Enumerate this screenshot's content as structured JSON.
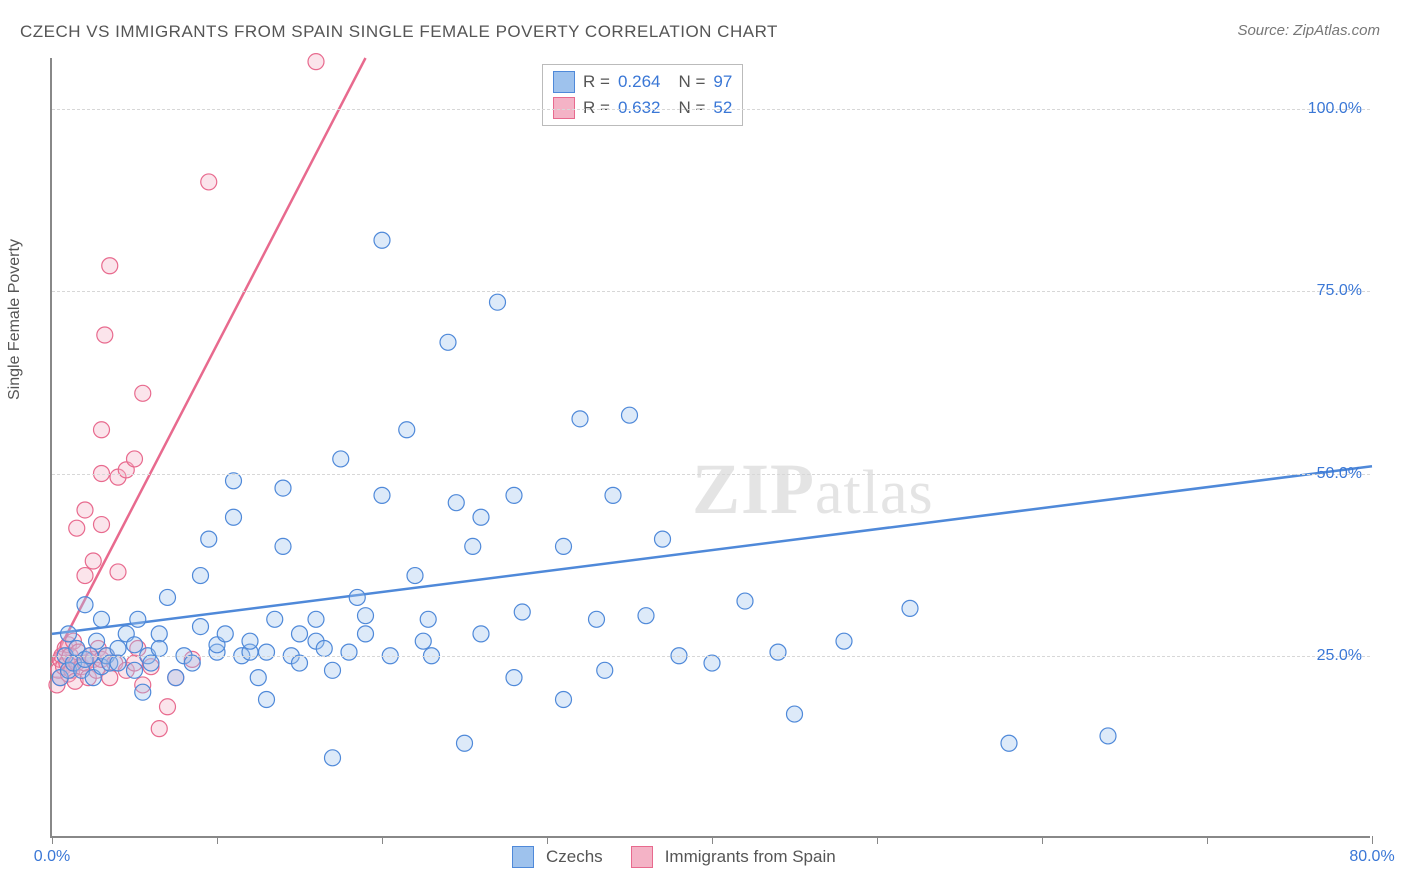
{
  "title": "CZECH VS IMMIGRANTS FROM SPAIN SINGLE FEMALE POVERTY CORRELATION CHART",
  "source": "Source: ZipAtlas.com",
  "ylabel": "Single Female Poverty",
  "watermark_part1": "ZIP",
  "watermark_part2": "atlas",
  "chart": {
    "type": "scatter",
    "background_color": "#ffffff",
    "grid_color": "#d7d7d7",
    "xlim": [
      0,
      80
    ],
    "ylim": [
      0,
      107
    ],
    "x_ticks": [
      0,
      10,
      20,
      30,
      40,
      50,
      60,
      70,
      80
    ],
    "x_tick_labels": {
      "0": "0.0%",
      "80": "80.0%"
    },
    "x_tick_label_color": "#3a77d6",
    "y_gridlines": [
      25,
      50,
      75,
      100
    ],
    "y_tick_labels": {
      "25": "25.0%",
      "50": "50.0%",
      "75": "75.0%",
      "100": "100.0%"
    },
    "y_tick_label_color": "#3a77d6",
    "marker_radius": 8,
    "marker_fill_opacity": 0.35,
    "marker_stroke_width": 1.2,
    "line_width": 2.5,
    "label_fontsize": 16,
    "title_fontsize": 17,
    "title_color": "#555555"
  },
  "series": {
    "czechs": {
      "label": "Czechs",
      "color_stroke": "#4f89d9",
      "color_fill": "#9ec2ed",
      "R": "0.264",
      "N": "97",
      "trend": {
        "x1": 0,
        "y1": 28,
        "x2": 80,
        "y2": 51
      },
      "points": [
        [
          0.5,
          22
        ],
        [
          0.8,
          25
        ],
        [
          1,
          23
        ],
        [
          1,
          28
        ],
        [
          1.3,
          24
        ],
        [
          1.5,
          26
        ],
        [
          1.8,
          23
        ],
        [
          2,
          24.5
        ],
        [
          2,
          32
        ],
        [
          2.3,
          25
        ],
        [
          2.5,
          22
        ],
        [
          2.7,
          27
        ],
        [
          3,
          23.5
        ],
        [
          3,
          30
        ],
        [
          3.3,
          25
        ],
        [
          3.5,
          24
        ],
        [
          4,
          26
        ],
        [
          4,
          24
        ],
        [
          4.5,
          28
        ],
        [
          5,
          23
        ],
        [
          5,
          26.5
        ],
        [
          5.2,
          30
        ],
        [
          5.5,
          20
        ],
        [
          5.8,
          25
        ],
        [
          6,
          24
        ],
        [
          6.5,
          28
        ],
        [
          6.5,
          26
        ],
        [
          7,
          33
        ],
        [
          7.5,
          22
        ],
        [
          8,
          25
        ],
        [
          8.5,
          24
        ],
        [
          9,
          29
        ],
        [
          9,
          36
        ],
        [
          9.5,
          41
        ],
        [
          10,
          25.5
        ],
        [
          10,
          26.5
        ],
        [
          10.5,
          28
        ],
        [
          11,
          44
        ],
        [
          11,
          49
        ],
        [
          11.5,
          25
        ],
        [
          12,
          25.5
        ],
        [
          12,
          27
        ],
        [
          12.5,
          22
        ],
        [
          13,
          19
        ],
        [
          13,
          25.5
        ],
        [
          13.5,
          30
        ],
        [
          14,
          40
        ],
        [
          14,
          48
        ],
        [
          14.5,
          25
        ],
        [
          15,
          24
        ],
        [
          15,
          28
        ],
        [
          16,
          27
        ],
        [
          16,
          30
        ],
        [
          16.5,
          26
        ],
        [
          17,
          11
        ],
        [
          17,
          23
        ],
        [
          17.5,
          52
        ],
        [
          18,
          25.5
        ],
        [
          18.5,
          33
        ],
        [
          19,
          28
        ],
        [
          19,
          30.5
        ],
        [
          20,
          82
        ],
        [
          20,
          47
        ],
        [
          20.5,
          25
        ],
        [
          21.5,
          56
        ],
        [
          22,
          36
        ],
        [
          22.5,
          27
        ],
        [
          22.8,
          30
        ],
        [
          23,
          25
        ],
        [
          24,
          68
        ],
        [
          24.5,
          46
        ],
        [
          25,
          13
        ],
        [
          25.5,
          40
        ],
        [
          26,
          44
        ],
        [
          26,
          28
        ],
        [
          27,
          73.5
        ],
        [
          28,
          22
        ],
        [
          28,
          47
        ],
        [
          28.5,
          31
        ],
        [
          31,
          19
        ],
        [
          31,
          40
        ],
        [
          32,
          57.5
        ],
        [
          33,
          30
        ],
        [
          33.5,
          23
        ],
        [
          34,
          47
        ],
        [
          35,
          58
        ],
        [
          36,
          30.5
        ],
        [
          37,
          41
        ],
        [
          38,
          25
        ],
        [
          40,
          24
        ],
        [
          42,
          32.5
        ],
        [
          44,
          25.5
        ],
        [
          45,
          17
        ],
        [
          48,
          27
        ],
        [
          52,
          31.5
        ],
        [
          58,
          13
        ],
        [
          64,
          14
        ]
      ]
    },
    "spain": {
      "label": "Immigrants from Spain",
      "color_stroke": "#e86a8e",
      "color_fill": "#f4b3c6",
      "R": "0.632",
      "N": "52",
      "trend": {
        "x1": 0,
        "y1": 24,
        "x2": 19,
        "y2": 107
      },
      "points": [
        [
          0.3,
          21
        ],
        [
          0.4,
          23
        ],
        [
          0.5,
          24.5
        ],
        [
          0.5,
          22
        ],
        [
          0.6,
          25
        ],
        [
          0.7,
          23.5
        ],
        [
          0.8,
          26
        ],
        [
          0.9,
          24
        ],
        [
          1,
          22.5
        ],
        [
          1,
          26.5
        ],
        [
          1.1,
          25
        ],
        [
          1.2,
          23
        ],
        [
          1.3,
          27
        ],
        [
          1.4,
          21.5
        ],
        [
          1.5,
          24
        ],
        [
          1.5,
          42.5
        ],
        [
          1.6,
          25.5
        ],
        [
          1.8,
          23.5
        ],
        [
          2,
          24
        ],
        [
          2,
          36
        ],
        [
          2,
          45
        ],
        [
          2.2,
          22
        ],
        [
          2.3,
          25
        ],
        [
          2.5,
          24.5
        ],
        [
          2.5,
          38
        ],
        [
          2.7,
          23
        ],
        [
          2.8,
          26
        ],
        [
          3,
          24.5
        ],
        [
          3,
          43
        ],
        [
          3,
          50
        ],
        [
          3,
          56
        ],
        [
          3.2,
          69
        ],
        [
          3.3,
          25
        ],
        [
          3.5,
          22
        ],
        [
          3.5,
          78.5
        ],
        [
          3.8,
          24
        ],
        [
          4,
          36.5
        ],
        [
          4,
          49.5
        ],
        [
          4.5,
          23
        ],
        [
          4.5,
          50.5
        ],
        [
          5,
          24
        ],
        [
          5,
          52
        ],
        [
          5.2,
          26
        ],
        [
          5.5,
          21
        ],
        [
          5.5,
          61
        ],
        [
          6,
          23.5
        ],
        [
          6.5,
          15
        ],
        [
          7,
          18
        ],
        [
          7.5,
          22
        ],
        [
          8.5,
          24.5
        ],
        [
          9.5,
          90
        ],
        [
          16,
          106.5
        ]
      ]
    }
  },
  "legend_top": {
    "R_label": "R =",
    "N_label": "N ="
  },
  "legend_bottom": {
    "series1": "Czechs",
    "series2": "Immigrants from Spain"
  }
}
